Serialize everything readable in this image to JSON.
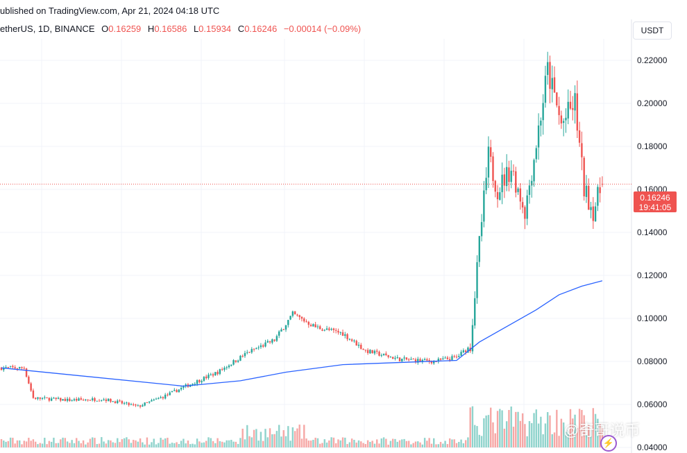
{
  "header": {
    "published": "ublished on TradingView.com, Apr 21, 2024 04:18 UTC"
  },
  "legend": {
    "symbol": "etherUS, 1D, BINANCE",
    "o_label": "O",
    "o": "0.16259",
    "h_label": "H",
    "h": "0.16586",
    "l_label": "L",
    "l": "0.15934",
    "c_label": "C",
    "c": "0.16246",
    "change": "−0.00014 (−0.09%)"
  },
  "axis": {
    "currency": "USDT"
  },
  "last_price": {
    "value": "0.16246",
    "countdown": "19:41:05"
  },
  "watermark": "@奇哥说币",
  "colors": {
    "up": "#26a69a",
    "down": "#ef5350",
    "ma": "#2962ff",
    "vol_up": "#8fd3cc",
    "vol_down": "#f6a7a5",
    "grid": "#f0f3fa"
  },
  "chart_data": {
    "type": "candlestick",
    "title": "",
    "xlabel": "",
    "ylabel": "",
    "ylim": [
      0.04,
      0.23
    ],
    "y_ticks": [
      "0.22000",
      "0.20000",
      "0.18000",
      "0.16000",
      "0.14000",
      "0.12000",
      "0.10000",
      "0.08000",
      "0.06000",
      "0.04000"
    ],
    "y_tick_values": [
      0.22,
      0.2,
      0.18,
      0.16,
      0.14,
      0.12,
      0.1,
      0.08,
      0.06,
      0.04
    ],
    "last_close": 0.16246,
    "anchors": [
      [
        0,
        0.077
      ],
      [
        10,
        0.077
      ],
      [
        14,
        0.063
      ],
      [
        30,
        0.062
      ],
      [
        45,
        0.0625
      ],
      [
        60,
        0.059
      ],
      [
        72,
        0.064
      ],
      [
        80,
        0.068
      ],
      [
        95,
        0.075
      ],
      [
        108,
        0.084
      ],
      [
        120,
        0.09
      ],
      [
        128,
        0.102
      ],
      [
        138,
        0.096
      ],
      [
        150,
        0.093
      ],
      [
        160,
        0.085
      ],
      [
        175,
        0.081
      ],
      [
        190,
        0.08
      ],
      [
        200,
        0.082
      ],
      [
        206,
        0.087
      ],
      [
        210,
        0.135
      ],
      [
        214,
        0.175
      ],
      [
        218,
        0.16
      ],
      [
        224,
        0.17
      ],
      [
        230,
        0.15
      ],
      [
        234,
        0.175
      ],
      [
        240,
        0.215
      ],
      [
        246,
        0.19
      ],
      [
        252,
        0.2
      ],
      [
        256,
        0.16
      ],
      [
        260,
        0.15
      ],
      [
        264,
        0.16246
      ]
    ],
    "ma_points": [
      [
        0,
        0.077
      ],
      [
        80,
        0.0685
      ],
      [
        105,
        0.071
      ],
      [
        125,
        0.075
      ],
      [
        150,
        0.0785
      ],
      [
        200,
        0.0805
      ],
      [
        210,
        0.089
      ],
      [
        225,
        0.098
      ],
      [
        235,
        0.104
      ],
      [
        245,
        0.111
      ],
      [
        255,
        0.115
      ],
      [
        264,
        0.1175
      ]
    ]
  }
}
